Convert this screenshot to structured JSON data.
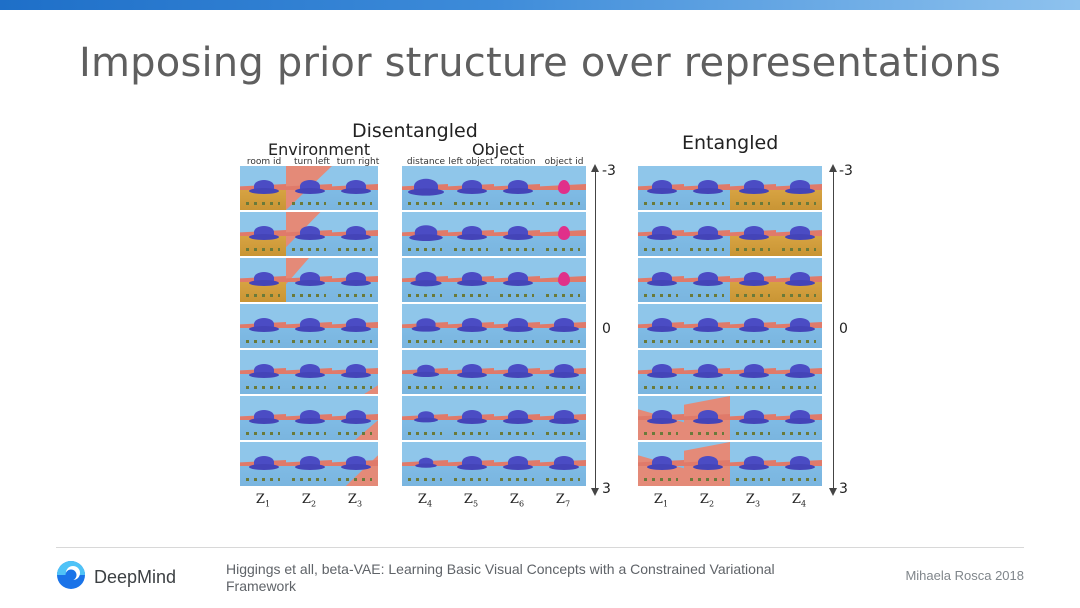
{
  "slide": {
    "title": "Imposing prior structure over representations",
    "citation": "Higgings et all, beta-VAE: Learning Basic Visual Concepts with a Constrained Variational Framework",
    "author": "Mihaela Rosca 2018",
    "brand": "DeepMind",
    "colors": {
      "topbar_start": "#1e6fc8",
      "topbar_end": "#8ec2ee",
      "title": "#5f5f5f"
    }
  },
  "figure": {
    "disentangled_label": "Disentangled",
    "environment_label": "Environment",
    "object_label": "Object",
    "entangled_label": "Entangled",
    "environment_columns": [
      "room id",
      "turn left",
      "turn right"
    ],
    "object_columns": [
      "distance",
      "left object",
      "rotation",
      "object id"
    ],
    "disentangled_z": [
      {
        "base": "Z",
        "sub": "1"
      },
      {
        "base": "Z",
        "sub": "2"
      },
      {
        "base": "Z",
        "sub": "3"
      },
      {
        "base": "Z",
        "sub": "4"
      },
      {
        "base": "Z",
        "sub": "5"
      },
      {
        "base": "Z",
        "sub": "6"
      },
      {
        "base": "Z",
        "sub": "7"
      }
    ],
    "entangled_z": [
      {
        "base": "Z",
        "sub": "1"
      },
      {
        "base": "Z",
        "sub": "2"
      },
      {
        "base": "Z",
        "sub": "3"
      },
      {
        "base": "Z",
        "sub": "4"
      }
    ],
    "axis_ticks": [
      "-3",
      "0",
      "3"
    ],
    "rows": 7
  }
}
